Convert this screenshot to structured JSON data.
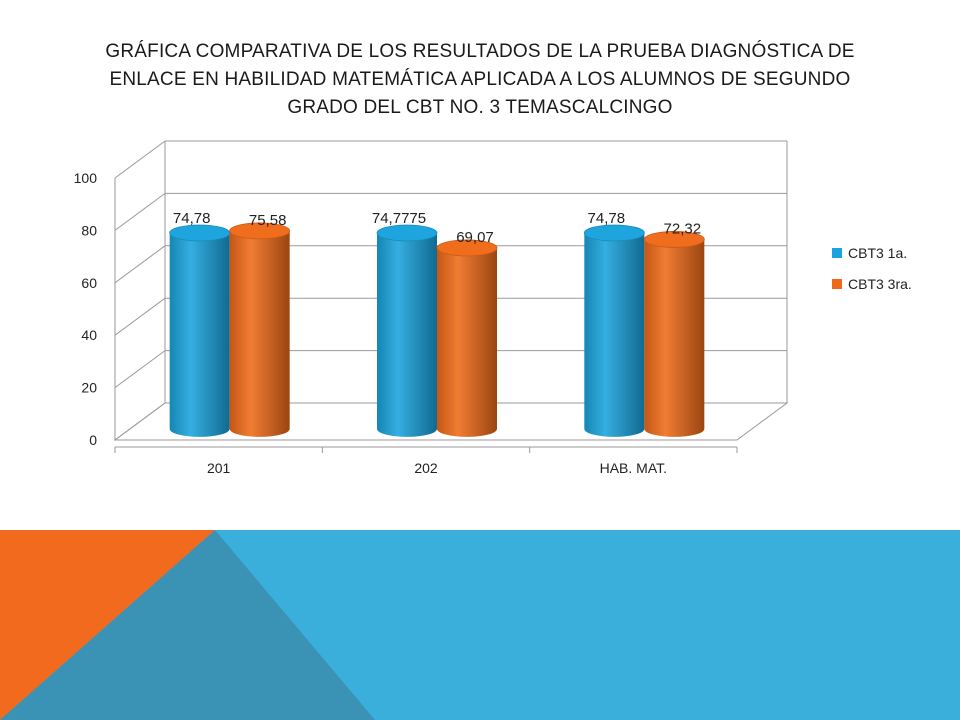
{
  "title_lines": [
    "GRÁFICA COMPARATIVA DE LOS RESULTADOS DE LA PRUEBA  DIAGNÓSTICA DE",
    "ENLACE EN HABILIDAD MATEMÁTICA APLICADA A LOS ALUMNOS DE SEGUNDO",
    "GRADO DEL CBT NO.  3 TEMASCALCINGO"
  ],
  "colors": {
    "series1": "#1aa3dd",
    "series2": "#ef6a18",
    "decor_blue": "#3aafdc",
    "decor_orange": "#f26a1e",
    "decor_teal": "#3a93b5"
  },
  "chart_data": {
    "type": "bar",
    "title": "GRÁFICA COMPARATIVA DE LOS RESULTADOS DE LA PRUEBA  DIAGNÓSTICA DE ENLACE EN HABILIDAD MATEMÁTICA APLICADA A LOS ALUMNOS DE SEGUNDO GRADO DEL CBT NO.  3 TEMASCALCINGO",
    "categories": [
      "201",
      "202",
      "HAB. MAT."
    ],
    "series": [
      {
        "name": "CBT3 1a.",
        "values": [
          74.78,
          74.7775,
          74.78
        ],
        "labels": [
          "74,78",
          "74,7775",
          "74,78"
        ]
      },
      {
        "name": "CBT3 3ra.",
        "values": [
          75.58,
          69.07,
          72.32
        ],
        "labels": [
          "75,58",
          "69,07",
          "72,32"
        ]
      }
    ],
    "ylim": [
      0,
      100
    ],
    "yticks": [
      "0",
      "20",
      "40",
      "60",
      "80",
      "100"
    ],
    "grid": true,
    "legend": "right",
    "style": "3d-cylinder"
  }
}
